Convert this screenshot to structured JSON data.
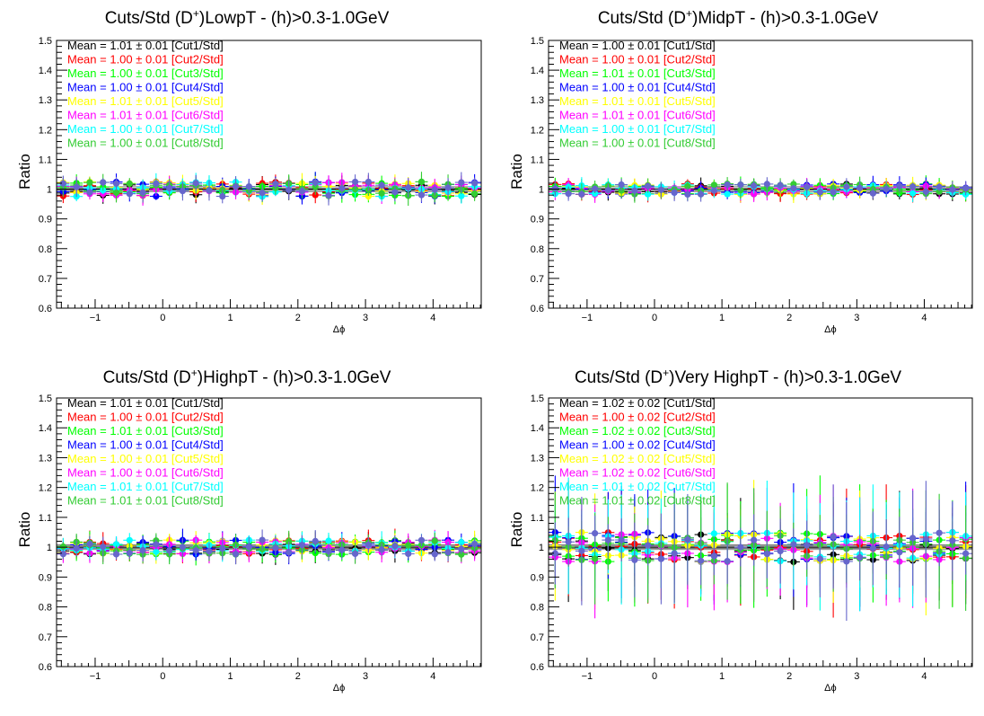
{
  "series_colors": [
    "#000000",
    "#ff0000",
    "#00ff00",
    "#0000ff",
    "#ffff00",
    "#ff00ff",
    "#00ffff",
    "#33cc33"
  ],
  "series_names": [
    "[Cut1/Std]",
    "[Cut2/Std]",
    "[Cut3/Std]",
    "[Cut4/Std]",
    "[Cut5/Std]",
    "[Cut6/Std]",
    "[Cut7/Std]",
    "[Cut8/Std]"
  ],
  "overlay_color": "#6666cc",
  "chart_data": [
    {
      "type": "scatter",
      "title_main": "Cuts/Std (D",
      "title_sup": "+",
      "title_rest": ")LowpT - (h)>0.3-1.0GeV",
      "xlabel": "Δϕ",
      "ylabel": "Ratio",
      "xlim": [
        -1.5708,
        4.7124
      ],
      "ylim": [
        0.6,
        1.5
      ],
      "x_ticks": [
        "−1",
        "0",
        "1",
        "2",
        "3",
        "4"
      ],
      "y_ticks": [
        "0.6",
        "0.7",
        "0.8",
        "0.9",
        "1",
        "1.1",
        "1.2",
        "1.3",
        "1.4",
        "1.5"
      ],
      "legend": [
        "Mean = 1.01 ± 0.01 [Cut1/Std]",
        "Mean = 1.00 ± 0.01 [Cut2/Std]",
        "Mean = 1.00 ± 0.01 [Cut3/Std]",
        "Mean = 1.00 ± 0.01 [Cut4/Std]",
        "Mean = 1.01 ± 0.01 [Cut5/Std]",
        "Mean = 1.01 ± 0.01 [Cut6/Std]",
        "Mean = 1.00 ± 0.01 [Cut7/Std]",
        "Mean = 1.00 ± 0.01 [Cut8/Std]"
      ],
      "points_per_series": 32,
      "spread": 0.025,
      "err_lo": 0.012,
      "err_hi": 0.035,
      "seed": 11
    },
    {
      "type": "scatter",
      "title_main": "Cuts/Std (D",
      "title_sup": "+",
      "title_rest": ")MidpT - (h)>0.3-1.0GeV",
      "xlabel": "Δϕ",
      "ylabel": "Ratio",
      "xlim": [
        -1.5708,
        4.7124
      ],
      "ylim": [
        0.6,
        1.5
      ],
      "x_ticks": [
        "−1",
        "0",
        "1",
        "2",
        "3",
        "4"
      ],
      "y_ticks": [
        "0.6",
        "0.7",
        "0.8",
        "0.9",
        "1",
        "1.1",
        "1.2",
        "1.3",
        "1.4",
        "1.5"
      ],
      "legend": [
        "Mean = 1.00 ± 0.01 [Cut1/Std]",
        "Mean = 1.00 ± 0.01 [Cut2/Std]",
        "Mean = 1.01 ± 0.01 [Cut3/Std]",
        "Mean = 1.00 ± 0.01 [Cut4/Std]",
        "Mean = 1.01 ± 0.01 [Cut5/Std]",
        "Mean = 1.01 ± 0.01 [Cut6/Std]",
        "Mean = 1.00 ± 0.01 [Cut7/Std]",
        "Mean = 1.00 ± 0.01 [Cut8/Std]"
      ],
      "points_per_series": 32,
      "spread": 0.018,
      "err_lo": 0.01,
      "err_hi": 0.03,
      "seed": 23
    },
    {
      "type": "scatter",
      "title_main": "Cuts/Std (D",
      "title_sup": "+",
      "title_rest": ")HighpT - (h)>0.3-1.0GeV",
      "xlabel": "Δϕ",
      "ylabel": "Ratio",
      "xlim": [
        -1.5708,
        4.7124
      ],
      "ylim": [
        0.6,
        1.5
      ],
      "x_ticks": [
        "−1",
        "0",
        "1",
        "2",
        "3",
        "4"
      ],
      "y_ticks": [
        "0.6",
        "0.7",
        "0.8",
        "0.9",
        "1",
        "1.1",
        "1.2",
        "1.3",
        "1.4",
        "1.5"
      ],
      "legend": [
        "Mean = 1.01 ± 0.01 [Cut1/Std]",
        "Mean = 1.00 ± 0.01 [Cut2/Std]",
        "Mean = 1.01 ± 0.01 [Cut3/Std]",
        "Mean = 1.00 ± 0.01 [Cut4/Std]",
        "Mean = 1.00 ± 0.01 [Cut5/Std]",
        "Mean = 1.00 ± 0.01 [Cut6/Std]",
        "Mean = 1.01 ± 0.01 [Cut7/Std]",
        "Mean = 1.01 ± 0.01 [Cut8/Std]"
      ],
      "points_per_series": 32,
      "spread": 0.025,
      "err_lo": 0.015,
      "err_hi": 0.04,
      "seed": 37
    },
    {
      "type": "scatter",
      "title_main": "Cuts/Std (D",
      "title_sup": "+",
      "title_rest": ")Very HighpT - (h)>0.3-1.0GeV",
      "xlabel": "Δϕ",
      "ylabel": "Ratio",
      "xlim": [
        -1.5708,
        4.7124
      ],
      "ylim": [
        0.6,
        1.5
      ],
      "x_ticks": [
        "−1",
        "0",
        "1",
        "2",
        "3",
        "4"
      ],
      "y_ticks": [
        "0.6",
        "0.7",
        "0.8",
        "0.9",
        "1",
        "1.1",
        "1.2",
        "1.3",
        "1.4",
        "1.5"
      ],
      "legend": [
        "Mean = 1.02 ± 0.02 [Cut1/Std]",
        "Mean = 1.00 ± 0.02 [Cut2/Std]",
        "Mean = 1.02 ± 0.02 [Cut3/Std]",
        "Mean = 1.00 ± 0.02 [Cut4/Std]",
        "Mean = 1.02 ± 0.02 [Cut5/Std]",
        "Mean = 1.02 ± 0.02 [Cut6/Std]",
        "Mean = 1.01 ± 0.02 [Cut7/Std]",
        "Mean = 1.01 ± 0.02 [Cut8/Std]"
      ],
      "points_per_series": 32,
      "spread": 0.05,
      "err_lo": 0.05,
      "err_hi": 0.2,
      "seed": 53
    }
  ]
}
